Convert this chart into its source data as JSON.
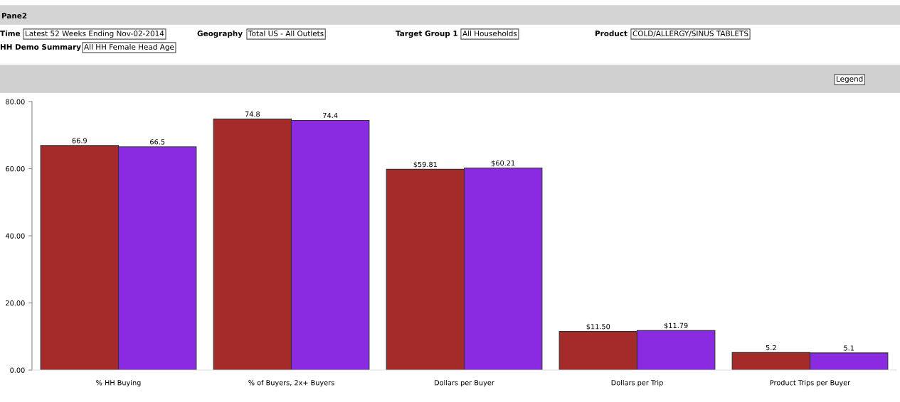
{
  "chart_data": {
    "type": "bar",
    "categories": [
      "% HH Buying",
      "% of Buyers, 2x+ Buyers",
      "Dollars per Buyer",
      "Dollars per Trip",
      "Product Trips per Buyer"
    ],
    "series": [
      {
        "color": "#a52a2a",
        "values": [
          66.9,
          74.8,
          59.81,
          11.5,
          5.2
        ],
        "value_labels": [
          "66.9",
          "74.8",
          "$59.81",
          "$11.50",
          "5.2"
        ]
      },
      {
        "color": "#8a2be2",
        "values": [
          66.5,
          74.4,
          60.21,
          11.79,
          5.1
        ],
        "value_labels": [
          "66.5",
          "74.4",
          "$60.21",
          "$11.79",
          "5.1"
        ]
      }
    ],
    "ylim": [
      0,
      80
    ],
    "yticks": [
      {
        "value": 0,
        "label": "0.00"
      },
      {
        "value": 20,
        "label": "20.00"
      },
      {
        "value": 40,
        "label": "40.00"
      },
      {
        "value": 60,
        "label": "60.00"
      },
      {
        "value": 80,
        "label": "80.00"
      }
    ],
    "grid": false,
    "annotations": [
      "Pane2",
      "Time",
      "Latest 52 Weeks Ending Nov-02-2014",
      "Geography",
      "Total US - All Outlets",
      "Target Group 1",
      "All Households",
      "Product",
      "COLD/ALLERGY/SINUS TABLETS",
      "HH Demo Summary",
      "All HH Female Head Age",
      "Legend"
    ]
  }
}
